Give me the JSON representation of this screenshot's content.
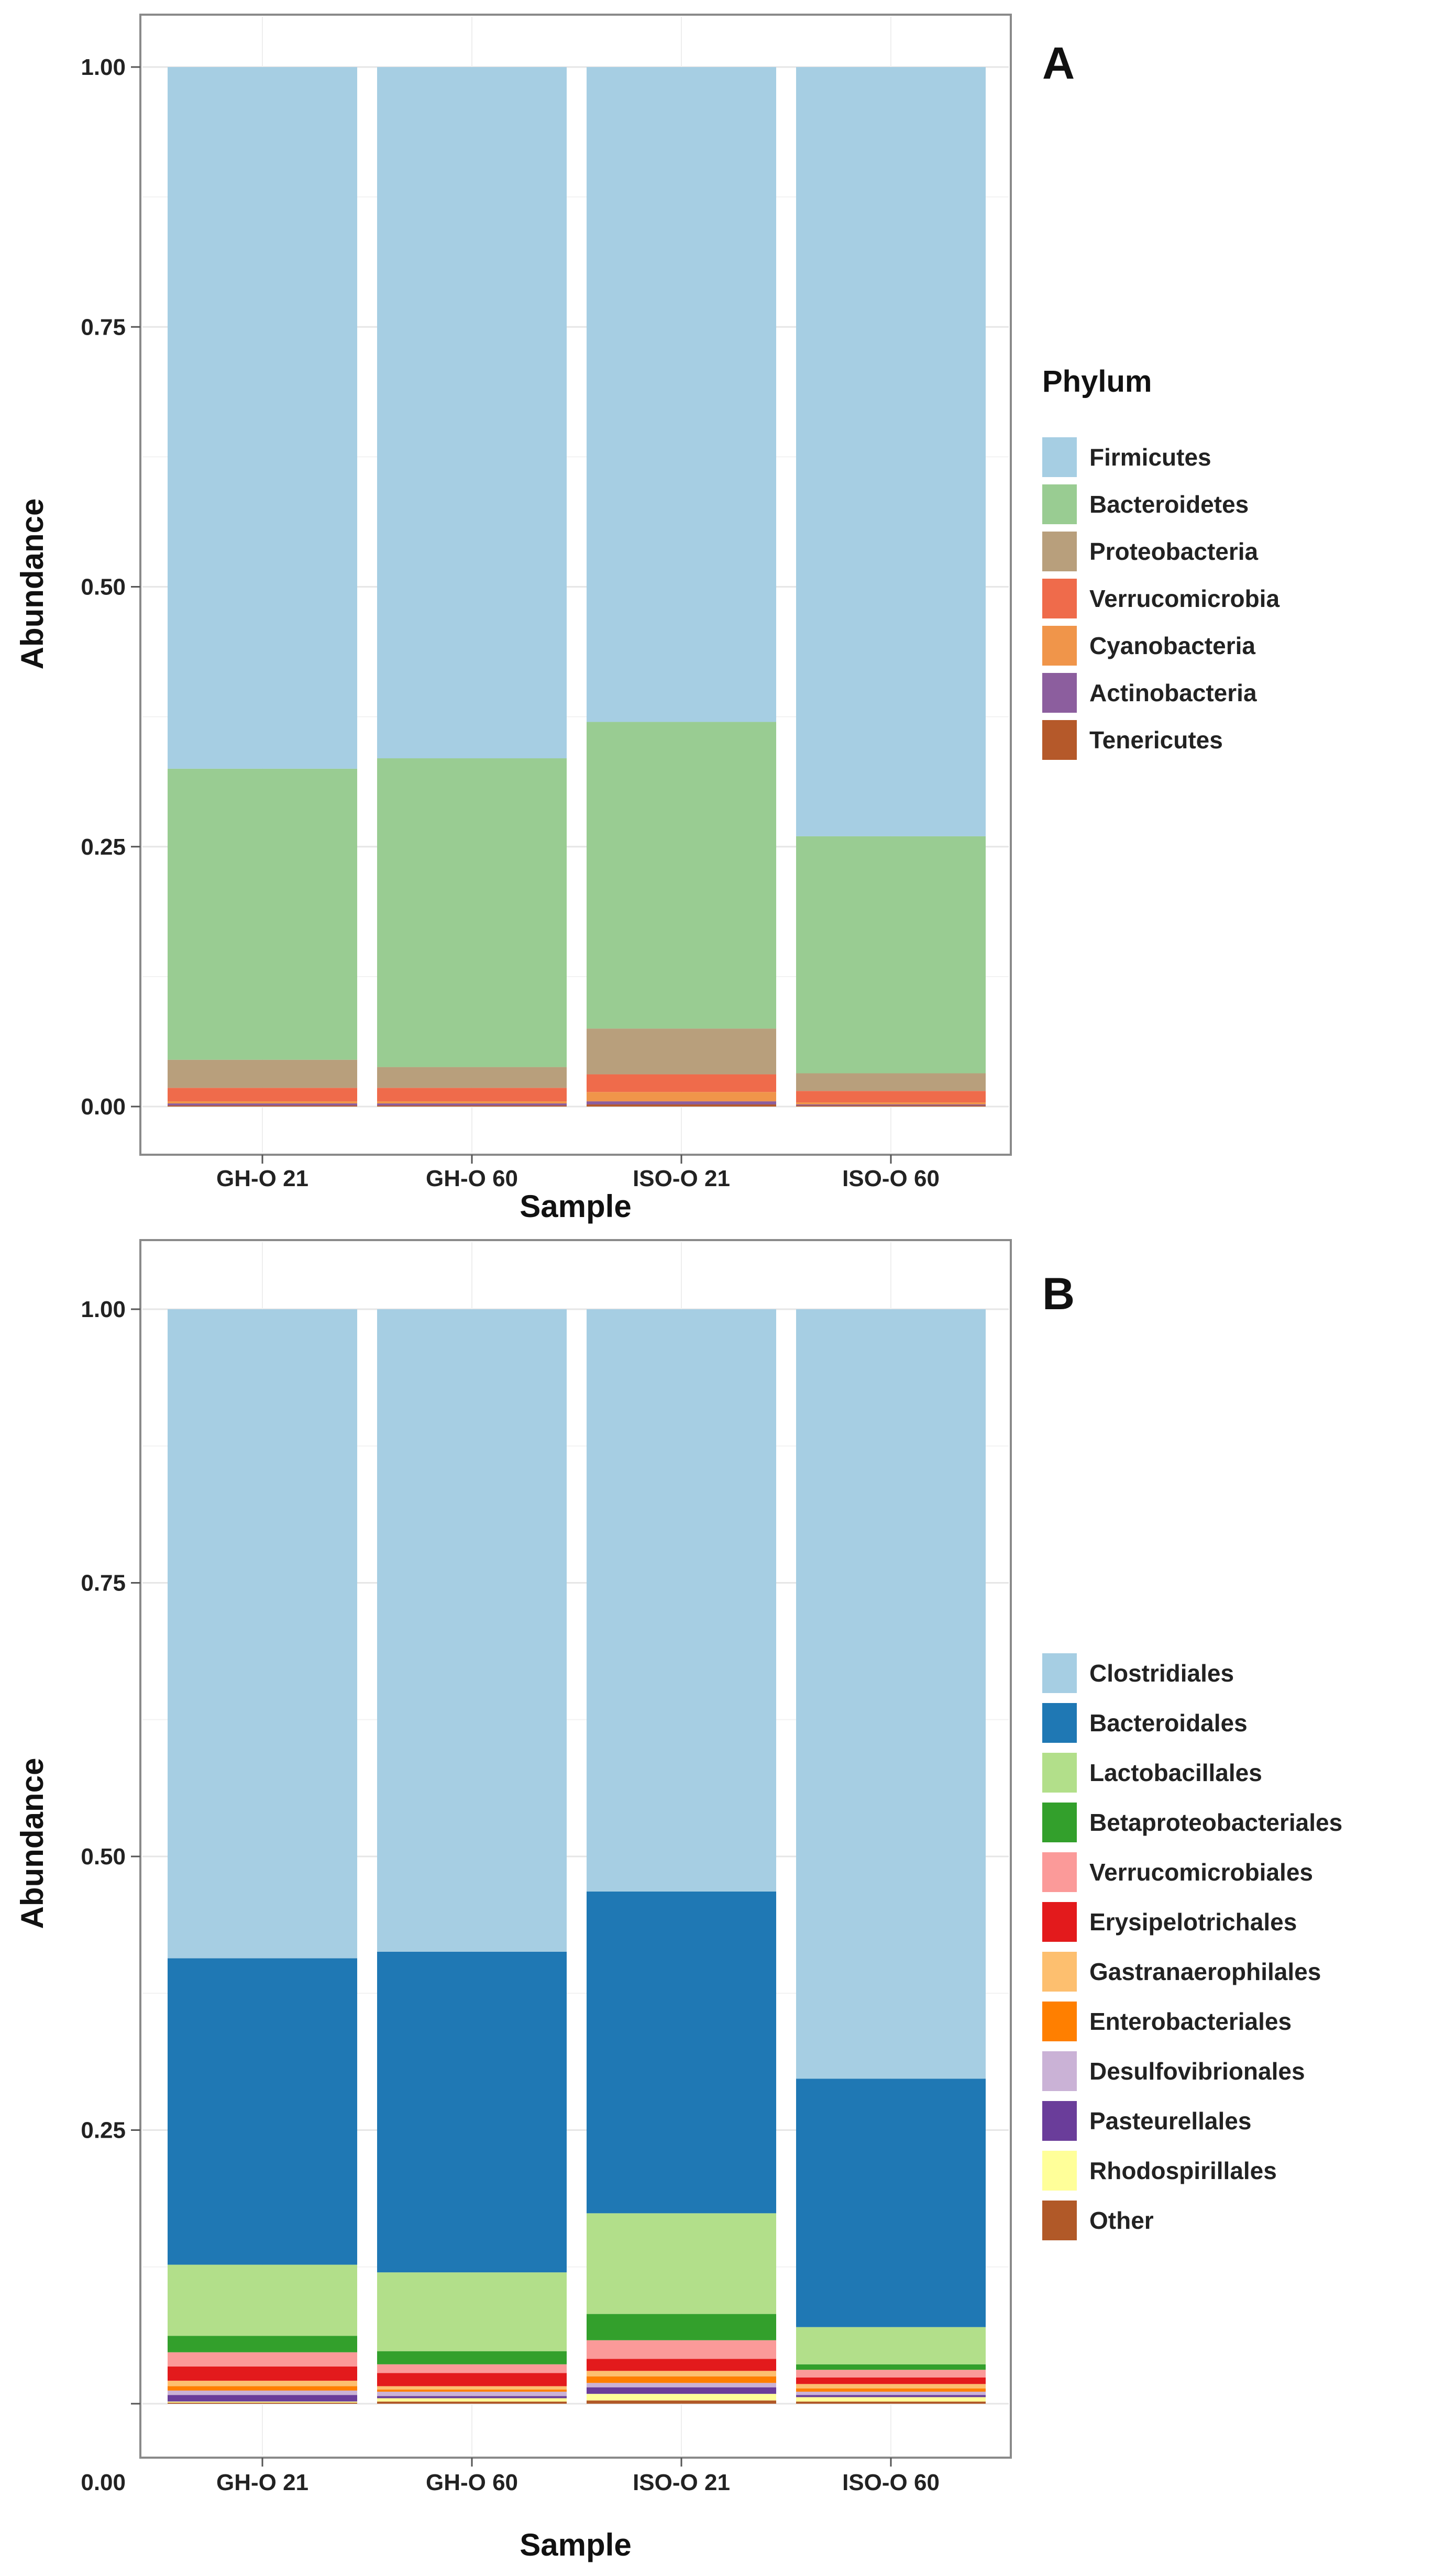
{
  "chart_data": [
    {
      "type": "bar",
      "stacked": true,
      "panel_label": "A",
      "xlabel": "Sample",
      "ylabel": "Abundance",
      "ylim": [
        0,
        1
      ],
      "yticks": [
        "0.00",
        "0.25",
        "0.50",
        "0.75",
        "1.00"
      ],
      "grid": true,
      "legend_position": "right",
      "legend_title": "Phylum",
      "categories": [
        "GH-O 21",
        "GH-O 60",
        "ISO-O 21",
        "ISO-O 60"
      ],
      "series": [
        {
          "name": "Firmicutes",
          "color": "#A6CEE3",
          "values": [
            0.675,
            0.665,
            0.63,
            0.74
          ]
        },
        {
          "name": "Bacteroidetes",
          "color": "#99CC92",
          "values": [
            0.28,
            0.297,
            0.295,
            0.228
          ]
        },
        {
          "name": "Proteobacteria",
          "color": "#B89F7C",
          "values": [
            0.027,
            0.02,
            0.044,
            0.017
          ]
        },
        {
          "name": "Verrucomicrobia",
          "color": "#EF6B4B",
          "values": [
            0.013,
            0.013,
            0.017,
            0.011
          ]
        },
        {
          "name": "Cyanobacteria",
          "color": "#F0954A",
          "values": [
            0.002,
            0.002,
            0.009,
            0.002
          ]
        },
        {
          "name": "Actinobacteria",
          "color": "#8C5E9E",
          "values": [
            0.002,
            0.002,
            0.003,
            0.001
          ]
        },
        {
          "name": "Tenericutes",
          "color": "#B5592A",
          "values": [
            0.001,
            0.001,
            0.002,
            0.001
          ]
        }
      ]
    },
    {
      "type": "bar",
      "stacked": true,
      "panel_label": "B",
      "xlabel": "Sample",
      "ylabel": "Abundance",
      "ylim": [
        0,
        1
      ],
      "yticks": [
        "0.00",
        "0.25",
        "0.50",
        "0.75",
        "1.00"
      ],
      "grid": true,
      "legend_position": "right",
      "categories": [
        "GH-O 21",
        "GH-O 60",
        "ISO-O 21",
        "ISO-O 60"
      ],
      "series": [
        {
          "name": "Clostridiales",
          "color": "#A6CEE3",
          "values": [
            0.593,
            0.587,
            0.532,
            0.703
          ]
        },
        {
          "name": "Bacteroidales",
          "color": "#1F78B4",
          "values": [
            0.28,
            0.293,
            0.294,
            0.227
          ]
        },
        {
          "name": "Lactobacillales",
          "color": "#B2DF8A",
          "values": [
            0.065,
            0.072,
            0.092,
            0.034
          ]
        },
        {
          "name": "Betaproteobacteriales",
          "color": "#33A02C",
          "values": [
            0.015,
            0.012,
            0.024,
            0.005
          ]
        },
        {
          "name": "Verrucomicrobiales",
          "color": "#FB9A99",
          "values": [
            0.013,
            0.008,
            0.017,
            0.007
          ]
        },
        {
          "name": "Erysipelotrichales",
          "color": "#E31A1C",
          "values": [
            0.013,
            0.012,
            0.011,
            0.006
          ]
        },
        {
          "name": "Gastranaerophilales",
          "color": "#FDBF6F",
          "values": [
            0.005,
            0.003,
            0.005,
            0.004
          ]
        },
        {
          "name": "Enterobacteriales",
          "color": "#FF7F00",
          "values": [
            0.004,
            0.002,
            0.006,
            0.003
          ]
        },
        {
          "name": "Desulfovibrionales",
          "color": "#CAB2D6",
          "values": [
            0.004,
            0.004,
            0.004,
            0.003
          ]
        },
        {
          "name": "Pasteurellales",
          "color": "#6A3D9A",
          "values": [
            0.006,
            0.002,
            0.006,
            0.002
          ]
        },
        {
          "name": "Rhodospirillales",
          "color": "#FFFF99",
          "values": [
            0.001,
            0.003,
            0.006,
            0.004
          ]
        },
        {
          "name": "Other",
          "color": "#B15928",
          "values": [
            0.001,
            0.002,
            0.003,
            0.002
          ]
        }
      ]
    }
  ]
}
